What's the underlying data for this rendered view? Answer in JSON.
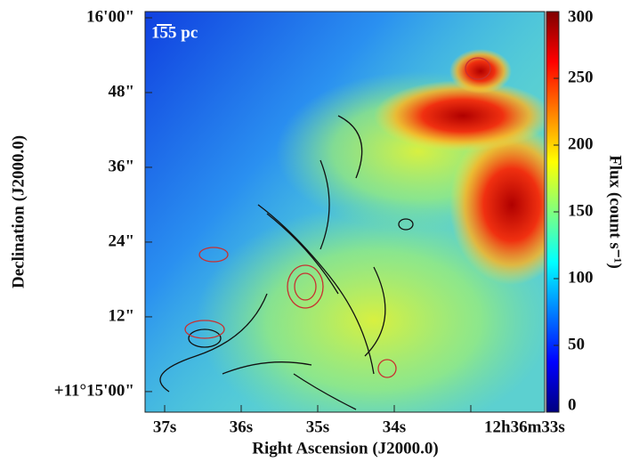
{
  "chart_data": {
    "type": "image",
    "annotation": "155 pc",
    "xlabel": "Right Ascension (J2000.0)",
    "ylabel": "Declination (J2000.0)",
    "colorbar_label": "Flux (count s⁻¹)",
    "colormap": "jet",
    "xlim": [
      37.256,
      32.035
    ],
    "xticks": [
      {
        "value": 37,
        "label": "37s"
      },
      {
        "value": 36,
        "label": "36s"
      },
      {
        "value": 35,
        "label": "35s"
      },
      {
        "value": 34,
        "label": "34s"
      },
      {
        "value": 33,
        "label": "12h36m33s"
      }
    ],
    "ylim": [
      -3.3,
      61
    ],
    "yticks": [
      {
        "value": 0,
        "label": "+11°15'00\""
      },
      {
        "value": 12,
        "label": "12\""
      },
      {
        "value": 24,
        "label": "24\""
      },
      {
        "value": 36,
        "label": "36\""
      },
      {
        "value": 48,
        "label": "48\""
      },
      {
        "value": 60,
        "label": "16'00\""
      }
    ],
    "zlim": [
      0,
      300
    ],
    "zticks": [
      0,
      50,
      100,
      150,
      200,
      250,
      300
    ]
  }
}
